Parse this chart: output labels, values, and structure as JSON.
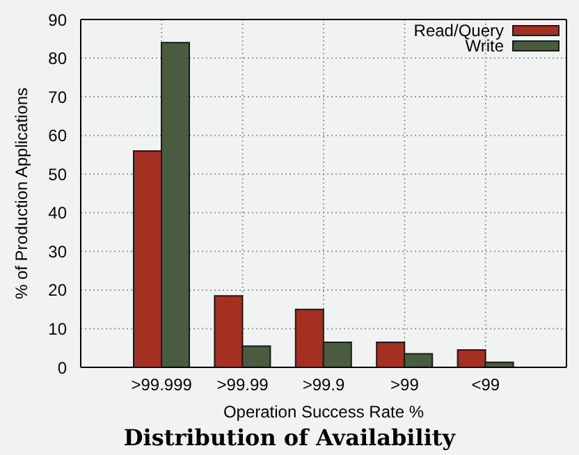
{
  "chart_data": {
    "type": "bar",
    "title": "Distribution of Availability",
    "xlabel": "Operation Success Rate %",
    "ylabel": "% of Production Applications",
    "categories": [
      ">99.999",
      ">99.99",
      ">99.9",
      ">99",
      "<99"
    ],
    "series": [
      {
        "name": "Read/Query",
        "color": "#a33020",
        "values": [
          56,
          18.5,
          15,
          6.5,
          4.5
        ]
      },
      {
        "name": "Write",
        "color": "#4a5c40",
        "values": [
          84,
          5.5,
          6.5,
          3.5,
          1.3
        ]
      }
    ],
    "ylim": [
      0,
      90
    ],
    "yticks": [
      0,
      10,
      20,
      30,
      40,
      50,
      60,
      70,
      80,
      90
    ],
    "grid": true,
    "legend": "top right"
  }
}
